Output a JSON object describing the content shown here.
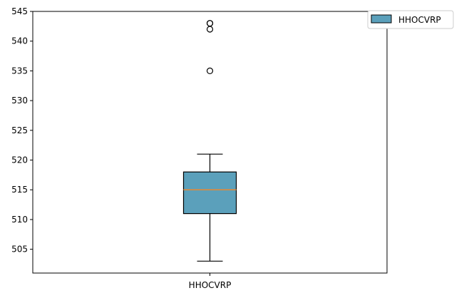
{
  "chart_data": {
    "type": "box",
    "title": "",
    "xlabel": "",
    "ylabel": "",
    "categories": [
      "HHOCVRP"
    ],
    "ylim": [
      501,
      545
    ],
    "yticks": [
      505,
      510,
      515,
      520,
      525,
      530,
      535,
      540,
      545
    ],
    "grid": false,
    "legend": {
      "placement": "top-right outside",
      "entries": [
        "HHOCVRP"
      ]
    },
    "series": [
      {
        "name": "HHOCVRP",
        "color": "#5ba0bb",
        "median_color": "#e0893a",
        "whisker_low": 503,
        "q1": 511,
        "median": 515,
        "q3": 518,
        "whisker_high": 521,
        "outliers": [
          535,
          542,
          543,
          543
        ]
      }
    ]
  }
}
